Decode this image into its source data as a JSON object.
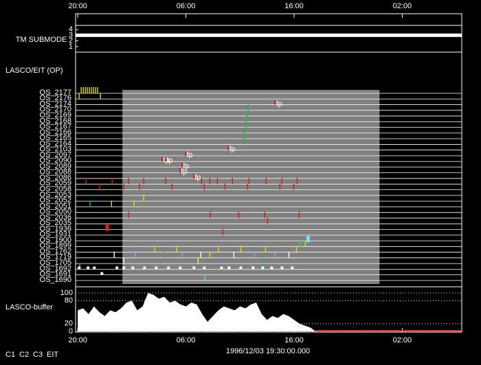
{
  "chart_data": {
    "type": "timeline",
    "xlim": [
      -0.2,
      35.5
    ],
    "xticks": [
      {
        "value": 0,
        "label": "20:00"
      },
      {
        "value": 10,
        "label": "06:00"
      },
      {
        "value": 20,
        "label": "16:00"
      },
      {
        "value": 30,
        "label": "02:00"
      }
    ],
    "date": "1996/12/03 19:30:00.000",
    "legend": [
      {
        "name": "C1",
        "color": "#ff2020"
      },
      {
        "name": "C2",
        "color": "#20e020"
      },
      {
        "name": "C3",
        "color": "#ffffff"
      },
      {
        "name": "EIT",
        "color": "#ffffff"
      }
    ],
    "highlight": [
      4.13,
      27.9
    ],
    "tm": {
      "label": "TM SUBMODE",
      "ylim": [
        0.5,
        4.5
      ],
      "yticks": [
        1,
        2,
        3,
        4
      ],
      "x": [
        -0.2,
        35.5
      ],
      "values": [
        3,
        3
      ]
    },
    "ops": {
      "label": "LASCO/EIT (OP)",
      "rows": [
        "OS_2177",
        "OS_2176",
        "OS_2174",
        "OS_2170",
        "OS_2169",
        "OS_2168",
        "OS_2167",
        "OS_2166",
        "OS_2165",
        "OS_2164",
        "OS_2103",
        "OS_2097",
        "OS_2090",
        "OS_2089",
        "OS_2088",
        "OS_2086",
        "OS_2059",
        "OS_2058",
        "OS_2053",
        "OS_2052",
        "OS_2051",
        "OS_2050",
        "OS_2036",
        "OS_2035",
        "OS_1936",
        "OS_1931",
        "OS_1900",
        "OS_1899",
        "OS_1762",
        "OS_1719",
        "OS_1705",
        "OS_1692",
        "OS_1691",
        "OS_1690"
      ],
      "events": [
        {
          "row": 0,
          "t": 0.32,
          "color": "#e8e000"
        },
        {
          "row": 0,
          "t": 0.51,
          "color": "#e8e000"
        },
        {
          "row": 0,
          "t": 0.7,
          "color": "#e8e000"
        },
        {
          "row": 0,
          "t": 0.89,
          "color": "#e8e000"
        },
        {
          "row": 0,
          "t": 1.08,
          "color": "#e8e000"
        },
        {
          "row": 0,
          "t": 1.27,
          "color": "#e8e000"
        },
        {
          "row": 0,
          "t": 1.46,
          "color": "#e8e000"
        },
        {
          "row": 0,
          "t": 1.65,
          "color": "#e8e000"
        },
        {
          "row": 0,
          "t": 1.84,
          "color": "#e8e000"
        },
        {
          "row": 1,
          "t": 0.13,
          "color": "#e8e000"
        },
        {
          "row": 1,
          "t": 2.1,
          "color": "#e8e000"
        },
        {
          "row": 3,
          "t": 15.77,
          "color": "#20c040"
        },
        {
          "row": 4,
          "t": 15.7,
          "color": "#20c040"
        },
        {
          "row": 5,
          "t": 15.64,
          "color": "#20c040"
        },
        {
          "row": 6,
          "t": 15.58,
          "color": "#20c040"
        },
        {
          "row": 7,
          "t": 15.51,
          "color": "#20c040"
        },
        {
          "row": 8,
          "t": 15.38,
          "color": "#20c040"
        },
        {
          "row": 9,
          "t": 15.32,
          "color": "#20c040"
        },
        {
          "row": 2,
          "t": 18.25,
          "color": "#ffff00",
          "label": "fp"
        },
        {
          "row": 10,
          "t": 13.92,
          "color": "#ffff00",
          "label": "fp"
        },
        {
          "row": 11,
          "t": 9.98,
          "color": "#ffff00",
          "label": "fp"
        },
        {
          "row": 12,
          "t": 7.82,
          "color": "#ffff00",
          "label": "fp"
        },
        {
          "row": 12,
          "t": 8.14,
          "color": "#ffff00",
          "label": "fp"
        },
        {
          "row": 13,
          "t": 9.66,
          "color": "#ffff00",
          "label": "fp"
        },
        {
          "row": 14,
          "t": 9.47,
          "color": "#ffff00",
          "label": "fp"
        },
        {
          "row": 15,
          "t": 10.74,
          "color": "#ffff00",
          "label": "fp"
        },
        {
          "row": 16,
          "t": 0.76,
          "color": "#e01010"
        },
        {
          "row": 16,
          "t": 3.18,
          "color": "#e01010"
        },
        {
          "row": 16,
          "t": 4.7,
          "color": "#e01010"
        },
        {
          "row": 16,
          "t": 6.1,
          "color": "#e01010"
        },
        {
          "row": 16,
          "t": 8.14,
          "color": "#e01010"
        },
        {
          "row": 16,
          "t": 11.44,
          "color": "#e01010"
        },
        {
          "row": 16,
          "t": 12.21,
          "color": "#e01010"
        },
        {
          "row": 16,
          "t": 12.91,
          "color": "#e01010"
        },
        {
          "row": 16,
          "t": 14.3,
          "color": "#e01010"
        },
        {
          "row": 16,
          "t": 15.83,
          "color": "#e01010"
        },
        {
          "row": 16,
          "t": 17.42,
          "color": "#e01010"
        },
        {
          "row": 16,
          "t": 18.88,
          "color": "#e01010"
        },
        {
          "row": 16,
          "t": 20.28,
          "color": "#e01010"
        },
        {
          "row": 17,
          "t": 2.03,
          "color": "#e01010"
        },
        {
          "row": 17,
          "t": 4.26,
          "color": "#e01010"
        },
        {
          "row": 17,
          "t": 5.72,
          "color": "#e01010"
        },
        {
          "row": 17,
          "t": 8.71,
          "color": "#e01010"
        },
        {
          "row": 17,
          "t": 11.7,
          "color": "#e01010"
        },
        {
          "row": 17,
          "t": 13.61,
          "color": "#e01010"
        },
        {
          "row": 17,
          "t": 15.7,
          "color": "#e01010"
        },
        {
          "row": 17,
          "t": 18.69,
          "color": "#e01010"
        },
        {
          "row": 17,
          "t": 19.96,
          "color": "#e01010"
        },
        {
          "row": 19,
          "t": 6.1,
          "color": "#e8e000"
        },
        {
          "row": 20,
          "t": 5.21,
          "color": "#e8e000"
        },
        {
          "row": 20,
          "t": 1.14,
          "color": "#20c040"
        },
        {
          "row": 20,
          "t": 3.12,
          "color": "#e8e000"
        },
        {
          "row": 22,
          "t": 4.7,
          "color": "#e01010"
        },
        {
          "row": 22,
          "t": 12.27,
          "color": "#e01010"
        },
        {
          "row": 22,
          "t": 14.88,
          "color": "#e01010"
        },
        {
          "row": 22,
          "t": 17.29,
          "color": "#e01010"
        },
        {
          "row": 22,
          "t": 20.47,
          "color": "#e01010"
        },
        {
          "row": 23,
          "t": 17.55,
          "color": "#e01010"
        },
        {
          "row": 24,
          "t": 2.73,
          "color": "#ff1010",
          "kind": "block"
        },
        {
          "row": 25,
          "t": 13.41,
          "color": "#e01010"
        },
        {
          "row": 26,
          "t": 21.3,
          "color": "#80e0ff",
          "kind": "block"
        },
        {
          "row": 27,
          "t": 20.6,
          "color": "#20e040"
        },
        {
          "row": 27,
          "t": 21.04,
          "color": "#e8e000"
        },
        {
          "row": 28,
          "t": 7.12,
          "color": "#e8e000"
        },
        {
          "row": 28,
          "t": 9.15,
          "color": "#e8e000"
        },
        {
          "row": 28,
          "t": 13.03,
          "color": "#e8e000"
        },
        {
          "row": 28,
          "t": 15.07,
          "color": "#e8e000"
        },
        {
          "row": 28,
          "t": 17.36,
          "color": "#e8e000"
        },
        {
          "row": 28,
          "t": 20.22,
          "color": "#e8e000"
        },
        {
          "row": 29,
          "t": 3.37,
          "color": "#ffffff"
        },
        {
          "row": 29,
          "t": 5.34,
          "color": "#60c0ff"
        },
        {
          "row": 29,
          "t": 8.07,
          "color": "#20c040"
        },
        {
          "row": 29,
          "t": 9.66,
          "color": "#60c0ff"
        },
        {
          "row": 29,
          "t": 11.38,
          "color": "#ffffff"
        },
        {
          "row": 29,
          "t": 12.21,
          "color": "#e8e000"
        },
        {
          "row": 29,
          "t": 14.43,
          "color": "#ffffff"
        },
        {
          "row": 29,
          "t": 16.34,
          "color": "#60c0ff"
        },
        {
          "row": 29,
          "t": 18.25,
          "color": "#60c0ff"
        },
        {
          "row": 29,
          "t": 19.52,
          "color": "#ffffff"
        },
        {
          "row": 30,
          "t": 4.26,
          "color": "#ffffff"
        },
        {
          "row": 30,
          "t": 11.13,
          "color": "#ffff00"
        },
        {
          "row": 30,
          "t": 17.04,
          "color": "#20c040"
        },
        {
          "row": 31,
          "t": 0.19,
          "color": "#20c040"
        },
        {
          "row": 31,
          "t": 0.13,
          "color": "#ffffff",
          "kind": "star"
        },
        {
          "row": 31,
          "t": 0.95,
          "color": "#ffffff",
          "kind": "star"
        },
        {
          "row": 31,
          "t": 1.53,
          "color": "#ffffff",
          "kind": "star"
        },
        {
          "row": 31,
          "t": 3.62,
          "color": "#ffffff",
          "kind": "star"
        },
        {
          "row": 31,
          "t": 4.26,
          "color": "#ffffff",
          "kind": "star"
        },
        {
          "row": 31,
          "t": 5.09,
          "color": "#ffffff",
          "kind": "star"
        },
        {
          "row": 31,
          "t": 6.17,
          "color": "#ffffff",
          "kind": "star"
        },
        {
          "row": 31,
          "t": 7.25,
          "color": "#ffffff",
          "kind": "star"
        },
        {
          "row": 31,
          "t": 8.39,
          "color": "#ffffff",
          "kind": "star"
        },
        {
          "row": 31,
          "t": 9.47,
          "color": "#ffffff",
          "kind": "star"
        },
        {
          "row": 31,
          "t": 10.74,
          "color": "#ffffff",
          "kind": "star"
        },
        {
          "row": 31,
          "t": 11.7,
          "color": "#ffffff",
          "kind": "star"
        },
        {
          "row": 31,
          "t": 13.29,
          "color": "#ffffff",
          "kind": "star"
        },
        {
          "row": 31,
          "t": 13.99,
          "color": "#ffffff",
          "kind": "star"
        },
        {
          "row": 31,
          "t": 15.07,
          "color": "#ffffff",
          "kind": "star"
        },
        {
          "row": 31,
          "t": 16.21,
          "color": "#ffffff",
          "kind": "star"
        },
        {
          "row": 31,
          "t": 17.1,
          "color": "#ffffff",
          "kind": "star"
        },
        {
          "row": 31,
          "t": 17.93,
          "color": "#ffffff",
          "kind": "star"
        },
        {
          "row": 31,
          "t": 18.88,
          "color": "#ffffff",
          "kind": "star"
        },
        {
          "row": 31,
          "t": 19.83,
          "color": "#ffffff",
          "kind": "star"
        },
        {
          "row": 32,
          "t": 2.23,
          "color": "#ffffff",
          "kind": "star"
        },
        {
          "row": 33,
          "t": 11.76,
          "color": "#60e0ff"
        }
      ]
    },
    "buffer": {
      "label": "LASCO-buffer",
      "ylim": [
        0,
        100
      ],
      "yticks": [
        0,
        20,
        80,
        100
      ],
      "grid": true,
      "color": "#ffffff",
      "tail_color": "#ff2020",
      "x": [
        0,
        0.5,
        1,
        1.5,
        2,
        2.5,
        3,
        3.5,
        4,
        4.5,
        5,
        5.5,
        6,
        6.5,
        7,
        7.5,
        8,
        8.5,
        9,
        9.5,
        10,
        10.5,
        11,
        11.5,
        12,
        12.5,
        13,
        13.5,
        14,
        14.5,
        15,
        15.5,
        16,
        16.5,
        17,
        17.5,
        18,
        18.5,
        19,
        19.5,
        20,
        20.5,
        21,
        21.5,
        22
      ],
      "values": [
        55,
        60,
        45,
        65,
        50,
        40,
        55,
        50,
        60,
        75,
        80,
        55,
        65,
        100,
        95,
        85,
        90,
        75,
        80,
        70,
        65,
        75,
        70,
        45,
        25,
        40,
        55,
        65,
        60,
        55,
        65,
        60,
        70,
        75,
        45,
        30,
        40,
        35,
        45,
        40,
        30,
        20,
        15,
        10,
        0
      ]
    }
  }
}
